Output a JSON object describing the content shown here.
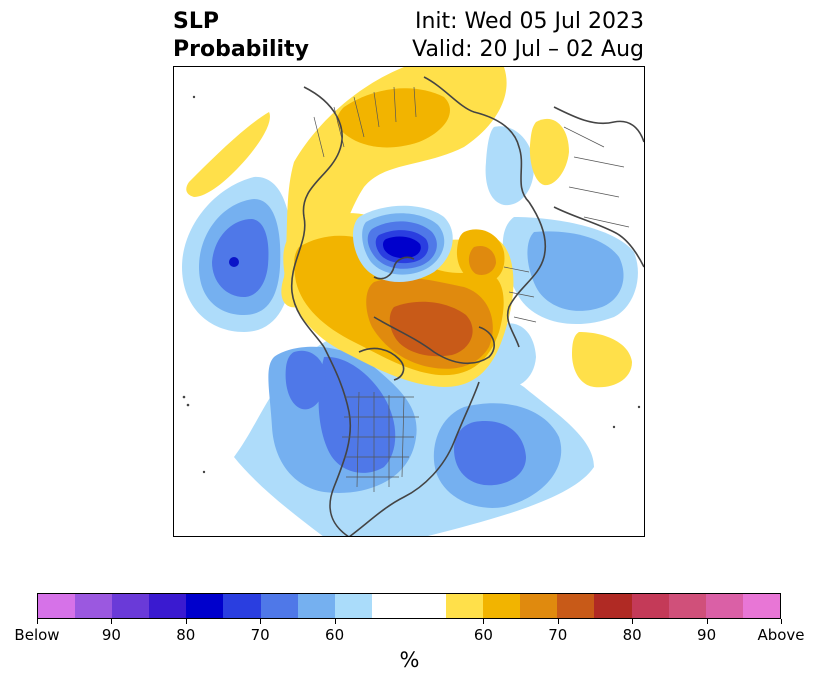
{
  "title": {
    "left_line1": "SLP",
    "left_line2": "Probability",
    "right_line1": "Init: Wed 05 Jul 2023",
    "right_line2": "Valid: 20 Jul – 02 Aug"
  },
  "colorbar": {
    "unit": "%",
    "colors": [
      "#d672e8",
      "#9b58e0",
      "#6a3ad8",
      "#3a1ad0",
      "#0000cc",
      "#2a3ee0",
      "#4f78e8",
      "#75b0f0",
      "#aadcfa",
      "#ffffff",
      "#ffffff",
      "#ffe04a",
      "#f2b400",
      "#e08a0e",
      "#c85a18",
      "#b02a24",
      "#c43a58",
      "#d0507a",
      "#da60a6",
      "#e876d6"
    ],
    "tick_labels": [
      "Below",
      "90",
      "80",
      "70",
      "60",
      "60",
      "70",
      "80",
      "90",
      "Above"
    ]
  },
  "map": {
    "projection": "north-polar-stereographic",
    "legend_colors": {
      "below_strong": "#0a14c8",
      "below_mid": "#4a6ee6",
      "below_light": "#7ab2f2",
      "below_faint": "#aedcfa",
      "above_faint": "#ffe04a",
      "above_light": "#f2b400",
      "above_mid": "#e08a0e",
      "above_strong": "#c85a18"
    }
  }
}
